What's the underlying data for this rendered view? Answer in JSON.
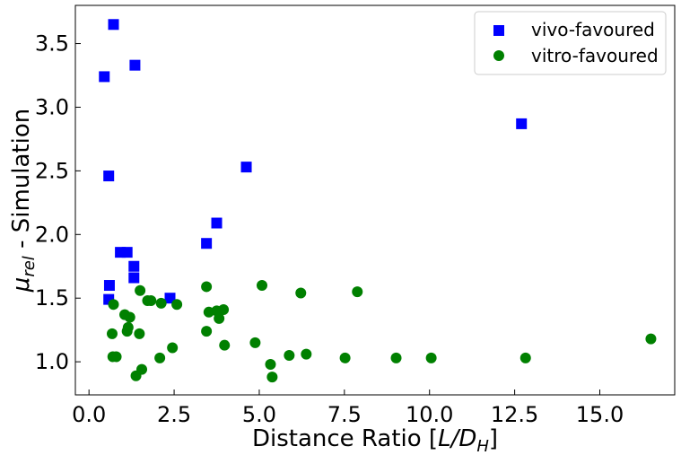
{
  "chart_data": {
    "type": "scatter",
    "title": "",
    "xlabel_text": "Distance Ratio [",
    "xlabel_math": "L/D",
    "xlabel_sub": "H",
    "xlabel_end": "]",
    "ylabel_symbol": "μ",
    "ylabel_sub": "rel",
    "ylabel_text": " - Simulation",
    "xlim": [
      -0.4,
      17.2
    ],
    "ylim": [
      0.74,
      3.8
    ],
    "xticks": [
      0.0,
      2.5,
      5.0,
      7.5,
      10.0,
      12.5,
      15.0
    ],
    "xtick_labels": [
      "0.0",
      "2.5",
      "5.0",
      "7.5",
      "10.0",
      "12.5",
      "15.0"
    ],
    "yticks": [
      1.0,
      1.5,
      2.0,
      2.5,
      3.0,
      3.5
    ],
    "ytick_labels": [
      "1.0",
      "1.5",
      "2.0",
      "2.5",
      "3.0",
      "3.5"
    ],
    "grid": false,
    "legend_position": "top-right",
    "series": [
      {
        "name": "vivo-favoured",
        "marker": "square",
        "color": "#0000ff",
        "points": [
          [
            0.45,
            3.24
          ],
          [
            0.72,
            3.65
          ],
          [
            1.35,
            3.33
          ],
          [
            0.58,
            2.46
          ],
          [
            0.6,
            1.6
          ],
          [
            0.58,
            1.49
          ],
          [
            0.92,
            1.86
          ],
          [
            1.12,
            1.86
          ],
          [
            1.32,
            1.75
          ],
          [
            1.32,
            1.66
          ],
          [
            2.38,
            1.5
          ],
          [
            3.45,
            1.93
          ],
          [
            3.75,
            2.09
          ],
          [
            4.62,
            2.53
          ],
          [
            12.7,
            2.87
          ]
        ]
      },
      {
        "name": "vitro-favoured",
        "marker": "circle",
        "color": "#008000",
        "points": [
          [
            0.72,
            1.45
          ],
          [
            0.68,
            1.22
          ],
          [
            0.7,
            1.04
          ],
          [
            0.8,
            1.04
          ],
          [
            1.05,
            1.37
          ],
          [
            1.12,
            1.24
          ],
          [
            1.2,
            1.35
          ],
          [
            1.15,
            1.27
          ],
          [
            1.38,
            0.89
          ],
          [
            1.5,
            1.56
          ],
          [
            1.48,
            1.22
          ],
          [
            1.55,
            0.94
          ],
          [
            1.72,
            1.48
          ],
          [
            1.82,
            1.48
          ],
          [
            2.08,
            1.03
          ],
          [
            2.12,
            1.46
          ],
          [
            2.45,
            1.11
          ],
          [
            2.58,
            1.45
          ],
          [
            3.45,
            1.59
          ],
          [
            3.45,
            1.24
          ],
          [
            3.52,
            1.39
          ],
          [
            3.75,
            1.4
          ],
          [
            3.82,
            1.34
          ],
          [
            3.95,
            1.41
          ],
          [
            3.98,
            1.13
          ],
          [
            4.88,
            1.15
          ],
          [
            5.08,
            1.6
          ],
          [
            5.33,
            0.98
          ],
          [
            5.38,
            0.88
          ],
          [
            5.88,
            1.05
          ],
          [
            6.22,
            1.54
          ],
          [
            6.38,
            1.06
          ],
          [
            7.52,
            1.03
          ],
          [
            7.88,
            1.55
          ],
          [
            9.02,
            1.03
          ],
          [
            10.05,
            1.03
          ],
          [
            12.82,
            1.03
          ],
          [
            16.5,
            1.18
          ]
        ]
      }
    ]
  }
}
